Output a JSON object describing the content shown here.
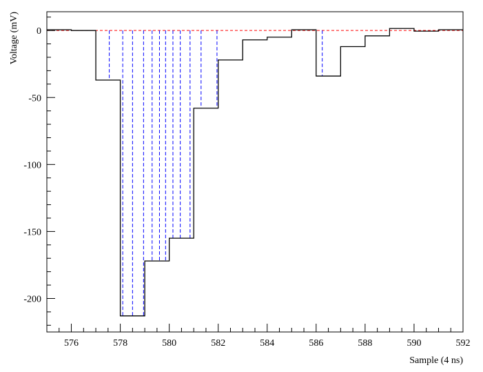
{
  "chart_data": {
    "type": "line",
    "style": "step-histogram",
    "xlabel": "Sample (4 ns)",
    "ylabel": "Voltage (mV)",
    "xlim": [
      575,
      592
    ],
    "ylim": [
      -225,
      14
    ],
    "x_ticks": [
      576,
      578,
      580,
      582,
      584,
      586,
      588,
      590,
      592
    ],
    "y_ticks": [
      0,
      -50,
      -100,
      -150,
      -200
    ],
    "grid": false,
    "legend": "none",
    "series": [
      {
        "bin_edges": [
          575,
          576,
          577,
          578,
          579,
          580,
          581,
          582,
          583,
          584,
          585,
          586,
          587,
          588,
          589,
          590,
          591,
          592
        ],
        "values": [
          0.5,
          0,
          -37,
          -213,
          -172,
          -155,
          -58,
          -22,
          -7,
          -5,
          0.5,
          -34,
          -12,
          -4,
          1.5,
          -0.5,
          0.5
        ],
        "color": "#000000"
      }
    ],
    "baseline": {
      "y": 0,
      "color": "#ff0000"
    },
    "markers": {
      "color": "#0000ff",
      "x": [
        577.55,
        578.1,
        578.5,
        578.95,
        579.3,
        579.6,
        579.85,
        580.15,
        580.45,
        580.85,
        581.3,
        581.95,
        586.25
      ]
    }
  }
}
